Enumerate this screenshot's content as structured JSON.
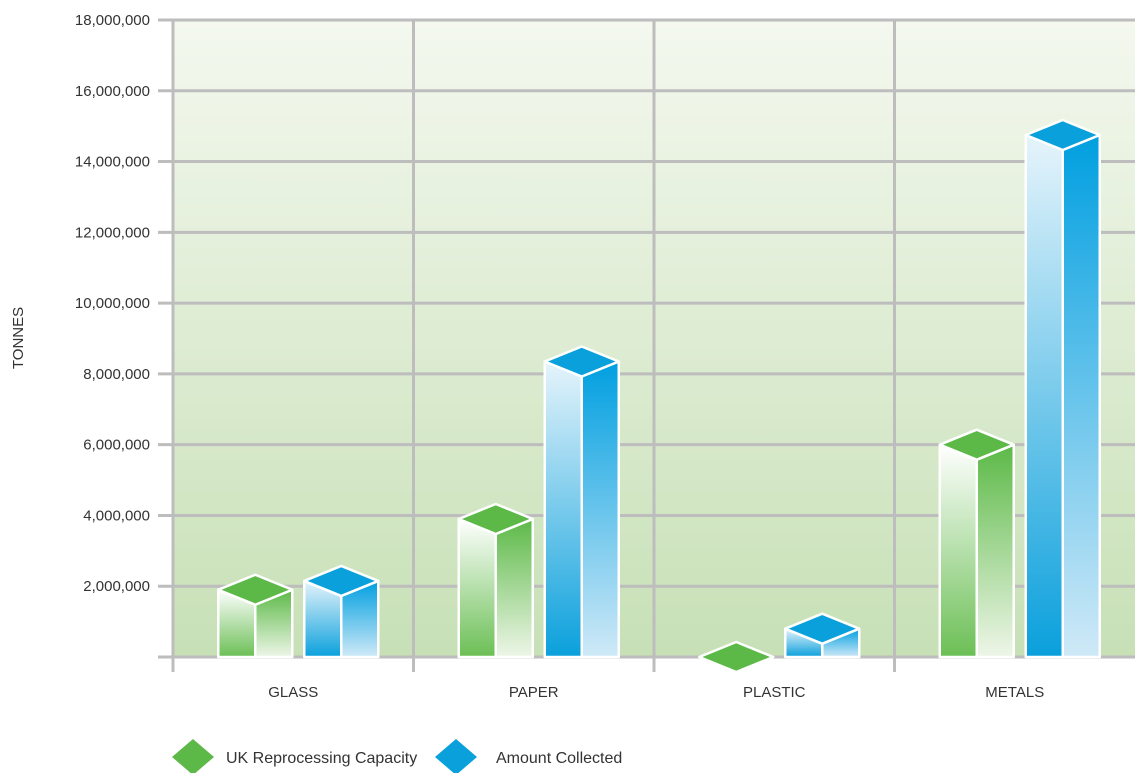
{
  "chart_data": {
    "type": "bar",
    "title": "",
    "xlabel": "",
    "ylabel": "TONNES",
    "ylim": [
      0,
      18000000
    ],
    "y_ticks": [
      "2,000,000",
      "4,000,000",
      "6,000,000",
      "8,000,000",
      "10,000,000",
      "12,000,000",
      "14,000,000",
      "16,000,000",
      "18,000,000"
    ],
    "y_tick_values": [
      2000000,
      4000000,
      6000000,
      8000000,
      10000000,
      12000000,
      14000000,
      16000000,
      18000000
    ],
    "categories": [
      "GLASS",
      "PAPER",
      "PLASTIC",
      "METALS"
    ],
    "series": [
      {
        "name": "UK Reprocessing Capacity",
        "values": [
          1900000,
          3900000,
          0,
          6000000
        ]
      },
      {
        "name": "Amount Collected",
        "values": [
          2150000,
          8350000,
          800000,
          14750000
        ]
      }
    ],
    "colors": {
      "series": [
        "#5cb947",
        "#0aa0dc"
      ],
      "background_top": "#f4f8ef",
      "background_bottom": "#c7e0b6",
      "grid": "#bdbdbd"
    },
    "grid": true,
    "legend_position": "bottom-left",
    "bar_style": "3d-prism"
  }
}
